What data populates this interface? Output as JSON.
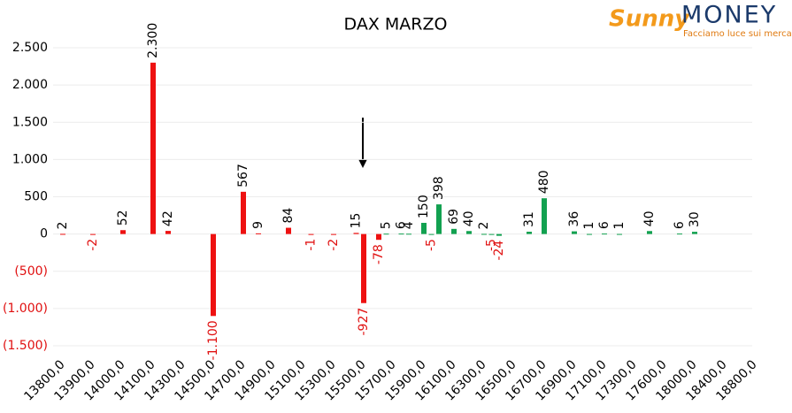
{
  "chart_data": {
    "type": "bar",
    "title": "DAX MARZO",
    "logo": {
      "brand1": "Sunny",
      "brand2": "MONEY",
      "tagline": "Facciamo luce sui mercati"
    },
    "categories": [
      "13800,0",
      null,
      null,
      null,
      "13900,0",
      null,
      null,
      null,
      "14000,0",
      null,
      null,
      null,
      "14100,0",
      null,
      null,
      null,
      "14300,0",
      null,
      null,
      null,
      "14500,0",
      null,
      null,
      null,
      "14700,0",
      null,
      null,
      null,
      "14900,0",
      null,
      null,
      null,
      "15100,0",
      null,
      null,
      null,
      "15300,0",
      null,
      null,
      null,
      "15500,0",
      null,
      null,
      null,
      "15700,0",
      null,
      null,
      null,
      "15900,0",
      null,
      null,
      null,
      "16100,0",
      null,
      null,
      null,
      "16300,0",
      null,
      null,
      null,
      "16500,0",
      null,
      null,
      null,
      "16700,0",
      null,
      null,
      null,
      "16900,0",
      null,
      null,
      null,
      "17100,0",
      null,
      null,
      null,
      "17300,0",
      null,
      null,
      null,
      "17600,0",
      null,
      null,
      null,
      "18000,0",
      null,
      null,
      null,
      "18400,0",
      null,
      null,
      null,
      "18800,0"
    ],
    "values": [
      2,
      null,
      null,
      null,
      -2,
      null,
      null,
      null,
      52,
      null,
      null,
      null,
      2300,
      null,
      42,
      null,
      null,
      null,
      null,
      null,
      -1100,
      null,
      null,
      null,
      567,
      null,
      9,
      null,
      null,
      null,
      84,
      null,
      null,
      -1,
      null,
      null,
      -2,
      null,
      null,
      15,
      -927,
      null,
      -78,
      5,
      null,
      6,
      4,
      null,
      150,
      -5,
      398,
      null,
      69,
      null,
      40,
      null,
      2,
      -5,
      -24,
      null,
      null,
      null,
      31,
      null,
      480,
      null,
      null,
      null,
      36,
      null,
      1,
      null,
      6,
      null,
      1,
      null,
      null,
      null,
      40,
      null,
      null,
      null,
      6,
      null,
      30,
      null,
      null,
      null,
      null,
      null,
      null,
      null,
      null
    ],
    "value_labels": [
      "2",
      null,
      null,
      null,
      "-2",
      null,
      null,
      null,
      "52",
      null,
      null,
      null,
      "2.300",
      null,
      "42",
      null,
      null,
      null,
      null,
      null,
      "-1.100",
      null,
      null,
      null,
      "567",
      null,
      "9",
      null,
      null,
      null,
      "84",
      null,
      null,
      "-1",
      null,
      null,
      "-2",
      null,
      null,
      "15",
      "-927",
      null,
      "-78",
      "5",
      null,
      "6",
      "4",
      null,
      "150",
      "-5",
      "398",
      null,
      "69",
      null,
      "40",
      null,
      "2",
      "-5",
      "-24",
      null,
      null,
      null,
      "31",
      null,
      "480",
      null,
      null,
      null,
      "36",
      null,
      "1",
      null,
      "6",
      null,
      "1",
      null,
      null,
      null,
      "40",
      null,
      null,
      null,
      "6",
      null,
      "30",
      null,
      null,
      null,
      null,
      null,
      null,
      null,
      null
    ],
    "colors": [
      "#ee1111",
      null,
      null,
      null,
      "#ee1111",
      null,
      null,
      null,
      "#ee1111",
      null,
      null,
      null,
      "#ee1111",
      null,
      "#ee1111",
      null,
      null,
      null,
      null,
      null,
      "#ee1111",
      null,
      null,
      null,
      "#ee1111",
      null,
      "#ee1111",
      null,
      null,
      null,
      "#ee1111",
      null,
      null,
      "#ee1111",
      null,
      null,
      "#ee1111",
      null,
      null,
      "#ee1111",
      "#ee1111",
      null,
      "#ee1111",
      "#12a150",
      null,
      "#12a150",
      "#12a150",
      null,
      "#12a150",
      "#12a150",
      "#12a150",
      null,
      "#12a150",
      null,
      "#12a150",
      null,
      "#12a150",
      "#12a150",
      "#12a150",
      null,
      null,
      null,
      "#12a150",
      null,
      "#12a150",
      null,
      null,
      null,
      "#12a150",
      null,
      "#12a150",
      null,
      "#12a150",
      null,
      "#12a150",
      null,
      null,
      null,
      "#12a150",
      null,
      null,
      null,
      "#12a150",
      null,
      "#12a150",
      null,
      null,
      null,
      null,
      null,
      null,
      null,
      null
    ],
    "ylim": [
      -1500,
      2500
    ],
    "yticks": [
      {
        "value": -1500,
        "label": "(1.500)"
      },
      {
        "value": -1000,
        "label": "(1.000)"
      },
      {
        "value": -500,
        "label": "(500)"
      },
      0,
      500,
      {
        "value": 1000,
        "label": "1.000"
      },
      {
        "value": 1500,
        "label": "1.500"
      },
      {
        "value": 2000,
        "label": "2.000"
      },
      {
        "value": 2500,
        "label": "2.500"
      }
    ],
    "grid": true
  }
}
